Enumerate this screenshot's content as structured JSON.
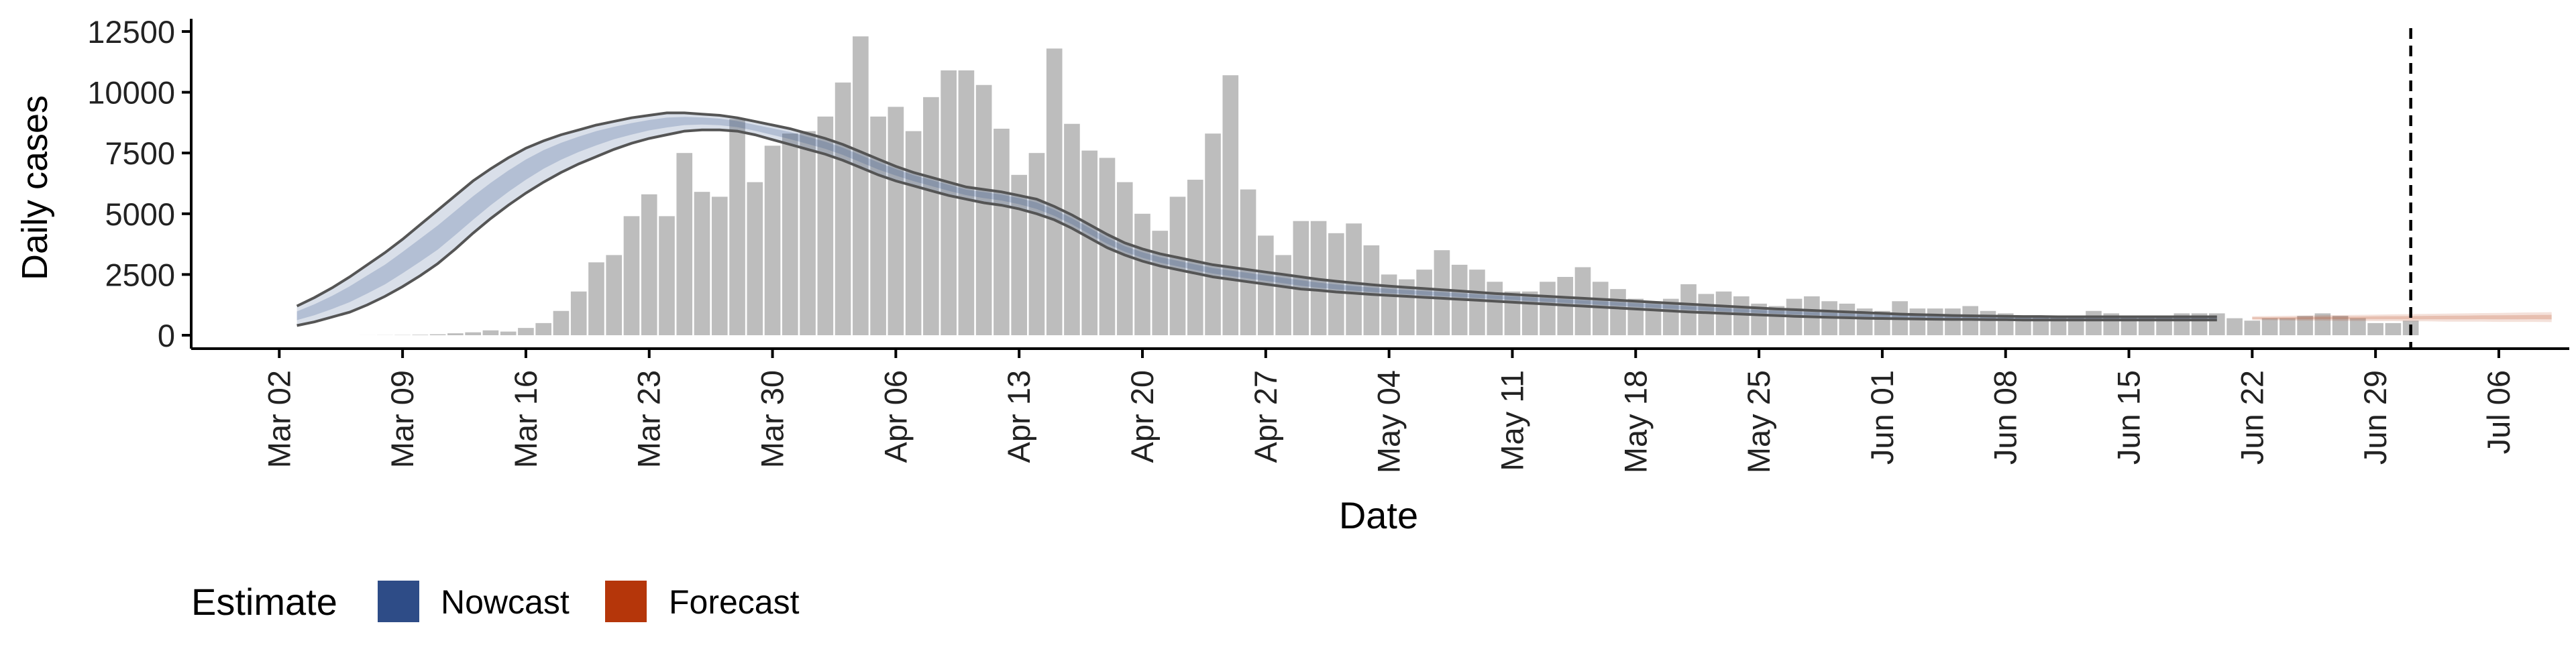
{
  "chart_data": {
    "type": "bar",
    "xlabel": "Date",
    "ylabel": "Daily cases",
    "ylim": [
      0,
      12500
    ],
    "y_ticks": [
      0,
      2500,
      5000,
      7500,
      10000,
      12500
    ],
    "y_tick_labels": [
      "0",
      "2500",
      "5000",
      "7500",
      "10000",
      "12500"
    ],
    "x_ticks": [
      "2020-03-02",
      "2020-03-09",
      "2020-03-16",
      "2020-03-23",
      "2020-03-30",
      "2020-04-06",
      "2020-04-13",
      "2020-04-20",
      "2020-04-27",
      "2020-05-04",
      "2020-05-11",
      "2020-05-18",
      "2020-05-25",
      "2020-06-01",
      "2020-06-08",
      "2020-06-15",
      "2020-06-22",
      "2020-06-29",
      "2020-07-06"
    ],
    "x_tick_labels": [
      "Mar 02",
      "Mar 09",
      "Mar 16",
      "Mar 23",
      "Mar 30",
      "Apr 06",
      "Apr 13",
      "Apr 20",
      "Apr 27",
      "May 04",
      "May 11",
      "May 18",
      "May 25",
      "Jun 01",
      "Jun 08",
      "Jun 15",
      "Jun 22",
      "Jun 29",
      "Jul 06"
    ],
    "xlim": [
      "2020-02-26",
      "2020-07-10"
    ],
    "grid": false,
    "vline_date": "2020-07-01",
    "bars_start_date": "2020-03-07",
    "bar_values": [
      2,
      5,
      10,
      20,
      40,
      80,
      120,
      200,
      150,
      300,
      500,
      1000,
      1800,
      3000,
      3300,
      4900,
      5800,
      4900,
      7500,
      5900,
      5700,
      8900,
      6300,
      7800,
      8300,
      8400,
      9000,
      10400,
      12300,
      9000,
      9400,
      8400,
      9800,
      10900,
      10900,
      10300,
      8500,
      6600,
      7500,
      11800,
      8700,
      7600,
      7300,
      6300,
      5000,
      4300,
      5700,
      6400,
      8300,
      10700,
      6000,
      4100,
      3300,
      4700,
      4700,
      4200,
      4600,
      3700,
      2500,
      2300,
      2700,
      3500,
      2900,
      2700,
      2200,
      1800,
      1800,
      2200,
      2400,
      2800,
      2200,
      1900,
      1500,
      1400,
      1500,
      2100,
      1700,
      1800,
      1600,
      1300,
      1200,
      1500,
      1600,
      1400,
      1300,
      1100,
      1000,
      1400,
      1100,
      1100,
      1100,
      1200,
      1000,
      900,
      800,
      800,
      800,
      800,
      1000,
      900,
      800,
      800,
      800,
      900,
      900,
      900,
      700,
      600,
      700,
      700,
      800,
      900,
      800,
      700,
      500,
      500,
      600
    ],
    "series": [
      {
        "name": "Nowcast",
        "color": "#2E4C87",
        "start_date": "2020-03-03",
        "median": [
          800,
          1050,
          1350,
          1700,
          2100,
          2500,
          3000,
          3500,
          4000,
          4600,
          5200,
          5800,
          6350,
          6850,
          7300,
          7650,
          7950,
          8200,
          8400,
          8550,
          8700,
          8800,
          8850,
          8850,
          8800,
          8700,
          8550,
          8400,
          8250,
          8050,
          7850,
          7600,
          7300,
          7000,
          6750,
          6500,
          6300,
          6100,
          5900,
          5800,
          5700,
          5550,
          5350,
          5050,
          4700,
          4300,
          3900,
          3550,
          3300,
          3100,
          2950,
          2800,
          2650,
          2550,
          2450,
          2350,
          2250,
          2150,
          2050,
          1980,
          1920,
          1860,
          1810,
          1770,
          1730,
          1690,
          1650,
          1610,
          1570,
          1530,
          1490,
          1450,
          1410,
          1370,
          1330,
          1290,
          1250,
          1210,
          1170,
          1130,
          1090,
          1050,
          1010,
          980,
          950,
          920,
          890,
          860,
          830,
          810,
          790,
          770,
          760,
          750,
          740,
          730,
          720,
          720,
          710,
          710,
          710,
          700,
          700,
          700,
          700,
          700,
          700,
          700,
          700,
          700
        ],
        "lower90": [
          400,
          550,
          750,
          950,
          1250,
          1600,
          2000,
          2450,
          2950,
          3550,
          4200,
          4800,
          5350,
          5850,
          6300,
          6700,
          7050,
          7350,
          7650,
          7900,
          8100,
          8250,
          8400,
          8450,
          8450,
          8400,
          8250,
          8050,
          7850,
          7650,
          7450,
          7200,
          6900,
          6600,
          6350,
          6150,
          5950,
          5750,
          5600,
          5450,
          5350,
          5200,
          5000,
          4750,
          4400,
          4000,
          3600,
          3300,
          3050,
          2850,
          2700,
          2550,
          2400,
          2300,
          2200,
          2100,
          2000,
          1900,
          1850,
          1780,
          1730,
          1680,
          1640,
          1600,
          1560,
          1520,
          1480,
          1440,
          1400,
          1360,
          1320,
          1280,
          1240,
          1200,
          1160,
          1120,
          1080,
          1040,
          1000,
          960,
          930,
          900,
          870,
          840,
          810,
          780,
          760,
          740,
          720,
          700,
          690,
          680,
          670,
          660,
          650,
          650,
          640,
          640,
          630,
          630,
          630,
          630,
          630,
          630,
          630,
          630,
          630,
          630,
          630,
          630
        ],
        "upper90": [
          1200,
          1550,
          1950,
          2400,
          2900,
          3400,
          3950,
          4550,
          5150,
          5750,
          6350,
          6850,
          7300,
          7700,
          8000,
          8250,
          8450,
          8650,
          8800,
          8950,
          9050,
          9150,
          9150,
          9100,
          9050,
          8950,
          8800,
          8650,
          8500,
          8300,
          8100,
          7850,
          7550,
          7250,
          6950,
          6700,
          6500,
          6300,
          6100,
          6000,
          5900,
          5750,
          5600,
          5300,
          4950,
          4550,
          4150,
          3800,
          3550,
          3350,
          3200,
          3050,
          2900,
          2800,
          2700,
          2600,
          2500,
          2400,
          2300,
          2220,
          2150,
          2080,
          2020,
          1970,
          1920,
          1870,
          1820,
          1770,
          1720,
          1680,
          1640,
          1600,
          1560,
          1520,
          1480,
          1440,
          1400,
          1360,
          1320,
          1280,
          1240,
          1200,
          1160,
          1120,
          1080,
          1050,
          1020,
          990,
          960,
          930,
          900,
          870,
          850,
          830,
          810,
          800,
          790,
          780,
          770,
          770,
          760,
          760,
          760,
          760,
          760,
          760,
          760,
          760,
          760,
          760
        ]
      },
      {
        "name": "Forecast",
        "color": "#B5360A",
        "start_date": "2020-06-22",
        "median": [
          700,
          700,
          700,
          700,
          710,
          710,
          710,
          720,
          720,
          720,
          730,
          730,
          730,
          740,
          740,
          740,
          750,
          750
        ],
        "lower90": [
          630,
          620,
          610,
          600,
          600,
          590,
          590,
          580,
          580,
          570,
          570,
          560,
          560,
          560,
          550,
          550,
          550,
          540
        ],
        "upper90": [
          780,
          790,
          800,
          810,
          820,
          830,
          840,
          850,
          860,
          870,
          880,
          890,
          900,
          910,
          920,
          930,
          940,
          950
        ]
      }
    ]
  },
  "legend": {
    "title": "Estimate",
    "items": [
      {
        "label": "Nowcast",
        "color": "#2E4C87"
      },
      {
        "label": "Forecast",
        "color": "#B5360A"
      }
    ]
  },
  "colors": {
    "bars": "#BDBDBD",
    "outline": "#555555",
    "axis": "#000000"
  }
}
